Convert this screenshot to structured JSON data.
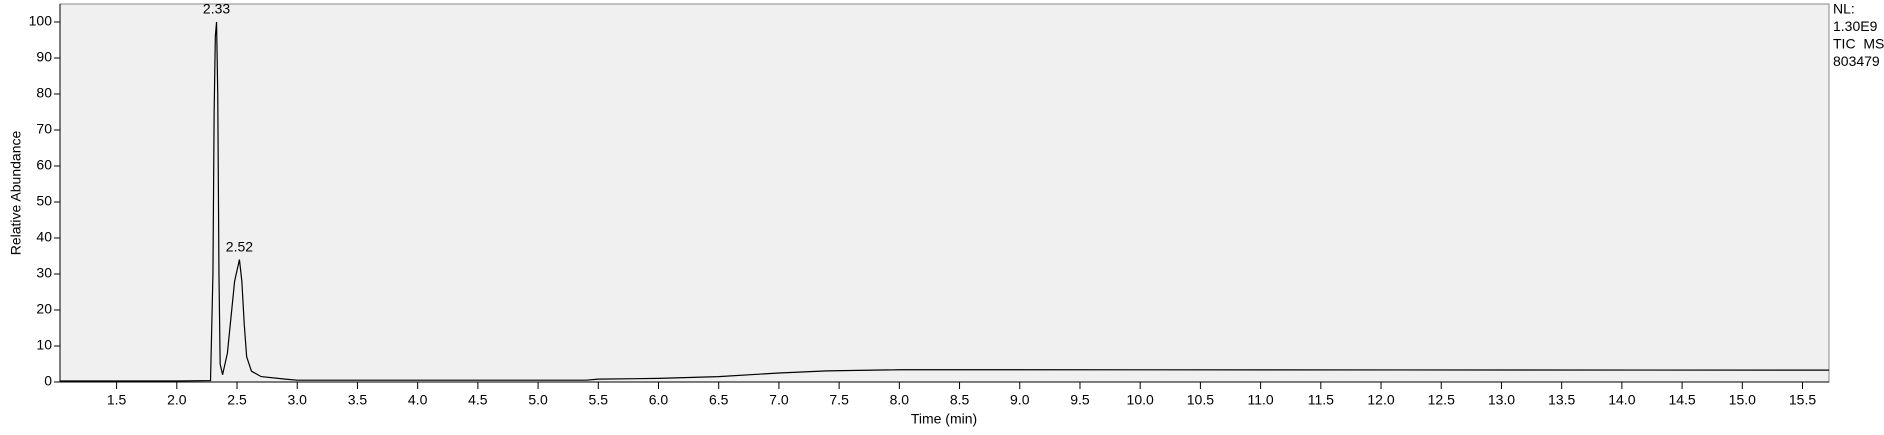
{
  "chart_data": {
    "type": "line",
    "xlabel": "Time (min)",
    "ylabel": "Relative Abundance",
    "side_labels": [
      "NL:",
      "1.30E9",
      "TIC  MS",
      "803479"
    ],
    "xlim": [
      1.03,
      15.72
    ],
    "ylim": [
      0,
      105
    ],
    "xticks": [
      1.5,
      {
        "value": 2,
        "label": "2.0"
      },
      2.5,
      {
        "value": 3,
        "label": "3.0"
      },
      3.5,
      {
        "value": 4,
        "label": "4.0"
      },
      4.5,
      {
        "value": 5,
        "label": "5.0"
      },
      5.5,
      {
        "value": 6,
        "label": "6.0"
      },
      6.5,
      {
        "value": 7,
        "label": "7.0"
      },
      7.5,
      {
        "value": 8,
        "label": "8.0"
      },
      8.5,
      {
        "value": 9,
        "label": "9.0"
      },
      9.5,
      {
        "value": 10,
        "label": "10.0"
      },
      10.5,
      {
        "value": 11,
        "label": "11.0"
      },
      11.5,
      {
        "value": 12,
        "label": "12.0"
      },
      12.5,
      {
        "value": 13,
        "label": "13.0"
      },
      13.5,
      {
        "value": 14,
        "label": "14.0"
      },
      14.5,
      {
        "value": 15,
        "label": "15.0"
      },
      15.5
    ],
    "yticks": [
      0,
      10,
      20,
      30,
      40,
      50,
      60,
      70,
      80,
      90,
      100
    ],
    "background": "#f0f0f0",
    "series": [
      {
        "color": "#000000",
        "x": [
          1.03,
          2.0,
          2.28,
          2.3,
          2.31,
          2.32,
          2.33,
          2.34,
          2.35,
          2.36,
          2.38,
          2.42,
          2.45,
          2.48,
          2.52,
          2.54,
          2.56,
          2.58,
          2.62,
          2.7,
          2.9,
          3.0,
          5.4,
          5.5,
          6.0,
          6.5,
          7.0,
          7.4,
          8.0,
          9.0,
          15.72
        ],
        "y": [
          0.3,
          0.3,
          0.4,
          30,
          75,
          96,
          100,
          80,
          30,
          5,
          2,
          8,
          18,
          28,
          34,
          28,
          16,
          7,
          3,
          1.5,
          0.8,
          0.5,
          0.5,
          0.8,
          1.0,
          1.5,
          2.5,
          3.1,
          3.4,
          3.4,
          3.3
        ]
      }
    ],
    "annotations": [
      {
        "x": 2.33,
        "y": 100
      },
      {
        "x": 2.52,
        "y": 34
      }
    ]
  }
}
